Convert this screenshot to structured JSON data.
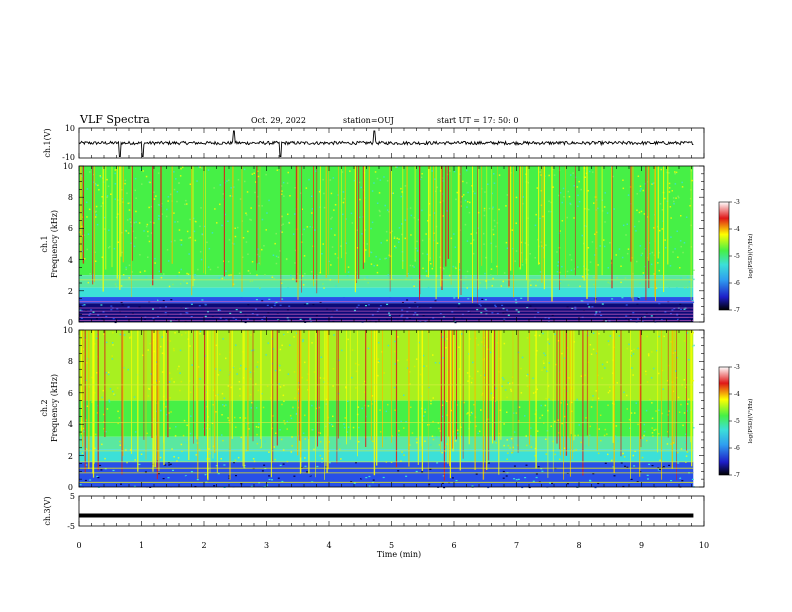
{
  "header": {
    "title": "VLF Spectra",
    "date": "Oct. 29, 2022",
    "station": "station=OUJ",
    "start_ut": "start  UT =   17: 50: 0"
  },
  "colors": {
    "deep_blue": "#0a0a78",
    "blue": "#2850e8",
    "cyan": "#3ce0d8",
    "green": "#46f046",
    "yellow": "#ffff00",
    "red": "#e01818"
  },
  "chart_data": [
    {
      "type": "line",
      "panel": "ch1-waveform",
      "ylabel": "ch.1(V)",
      "ylim": [
        -10,
        10
      ],
      "yticklabels": [
        "10",
        "-10"
      ],
      "baseline": 0,
      "spike_minutes": [
        0.65,
        1.02,
        2.48,
        3.22,
        4.72
      ],
      "xlim": [
        0,
        10
      ]
    },
    {
      "type": "heatmap",
      "panel": "ch1-spectrogram",
      "ylabel_top": "ch.1",
      "ylabel": "Frequency (kHz)",
      "ylim": [
        0,
        10
      ],
      "yticklabels": [
        "0",
        "2",
        "4",
        "6",
        "8",
        "10"
      ],
      "xlim": [
        0,
        10
      ],
      "data_end_min": 9.83,
      "colorbar": {
        "label": "log(PSD)(V²/Hz)",
        "range": [
          -7,
          -3
        ],
        "ticklabels": [
          "-3",
          "-4",
          "-5",
          "-6",
          "-7"
        ]
      }
    },
    {
      "type": "heatmap",
      "panel": "ch2-spectrogram",
      "ylabel_top": "ch.2",
      "ylabel": "Frequency (kHz)",
      "ylim": [
        0,
        10
      ],
      "yticklabels": [
        "0",
        "2",
        "4",
        "6",
        "8",
        "10"
      ],
      "xlim": [
        0,
        10
      ],
      "data_end_min": 9.83,
      "colorbar": {
        "label": "log(PSD)(V²/Hz)",
        "range": [
          -7,
          -3
        ],
        "ticklabels": [
          "-3",
          "-4",
          "-5",
          "-6",
          "-7"
        ]
      }
    },
    {
      "type": "line",
      "panel": "ch3-waveform",
      "ylabel": "ch.3(V)",
      "ylim": [
        -5,
        5
      ],
      "yticklabels": [
        "5",
        "-5"
      ],
      "baseline": -1.5,
      "xlim": [
        0,
        10
      ]
    }
  ],
  "xaxis": {
    "label": "Time (min)",
    "ticklabels": [
      "0",
      "1",
      "2",
      "3",
      "4",
      "5",
      "6",
      "7",
      "8",
      "9",
      "10"
    ]
  }
}
